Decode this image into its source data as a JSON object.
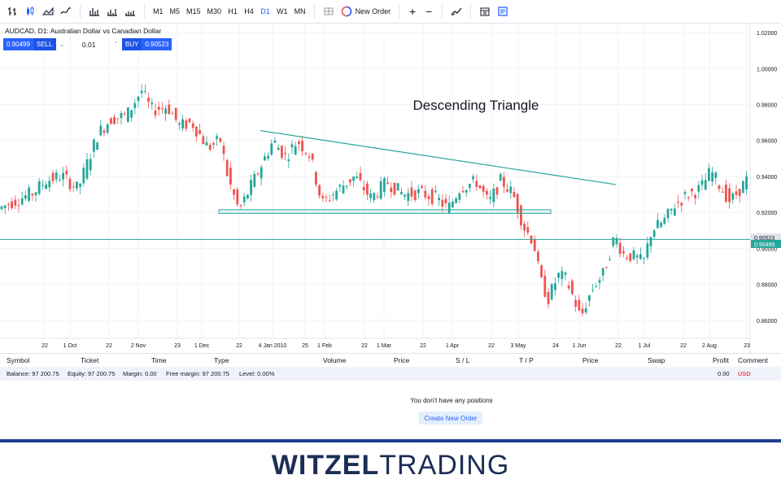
{
  "toolbar": {
    "timeframes": [
      "M1",
      "M5",
      "M15",
      "M30",
      "H1",
      "H4",
      "D1",
      "W1",
      "MN"
    ],
    "active_timeframe": "D1",
    "new_order_label": "New Order"
  },
  "symbol": {
    "title": "AUDCAD, D1: Australian Dollar vs Canadian Dollar",
    "sell_price": "0.90499",
    "sell_label": "SELL",
    "quantity": "0.01",
    "buy_label": "BUY",
    "buy_price": "0.90523"
  },
  "chart_data": {
    "type": "candlestick",
    "annotation": "Descending Triangle",
    "y_ticks": [
      "1.02000",
      "1.00000",
      "0.98000",
      "0.96000",
      "0.94000",
      "0.92000",
      "0.90000",
      "0.88000",
      "0.86000"
    ],
    "ylim": [
      0.85,
      1.025
    ],
    "x_ticks": [
      "22",
      "1 Oct",
      "22",
      "2 Nov",
      "23",
      "1 Dec",
      "22",
      "4 Jan 2010",
      "25",
      "1 Feb",
      "22",
      "1 Mar",
      "22",
      "1 Apr",
      "22",
      "3 May",
      "24",
      "1 Jun",
      "22",
      "1 Jul",
      "22",
      "2 Aug",
      "23"
    ],
    "price_labels": {
      "buy": "0.90523",
      "sell": "0.90499"
    },
    "horizontal_line": 0.905,
    "support_level": [
      0.9195,
      0.9215
    ],
    "resistance_line": [
      {
        "date": "1 Jan",
        "price": 0.9655
      },
      {
        "date": "Jun",
        "price": 0.9355
      }
    ],
    "up_color": "#26a69a",
    "down_color": "#ef5350"
  },
  "positions": {
    "columns": [
      "Symbol",
      "Ticket",
      "Time",
      "Type",
      "Volume",
      "Price",
      "S / L",
      "T / P",
      "Price",
      "Swap",
      "Profit",
      "Comment"
    ],
    "balance_text": "Balance: 97 200.75",
    "equity_text": "Equity: 97 200.75",
    "margin_text": "Margin: 0.00",
    "free_margin_text": "Free margin: 97 200.75",
    "level_text": "Level: 0.00%",
    "profit_value": "0.00",
    "currency": "USD",
    "empty_message": "You don't have any positions",
    "create_order_label": "Create New Order"
  },
  "brand": {
    "part1": "WITZEL",
    "part2": "TRADING"
  }
}
